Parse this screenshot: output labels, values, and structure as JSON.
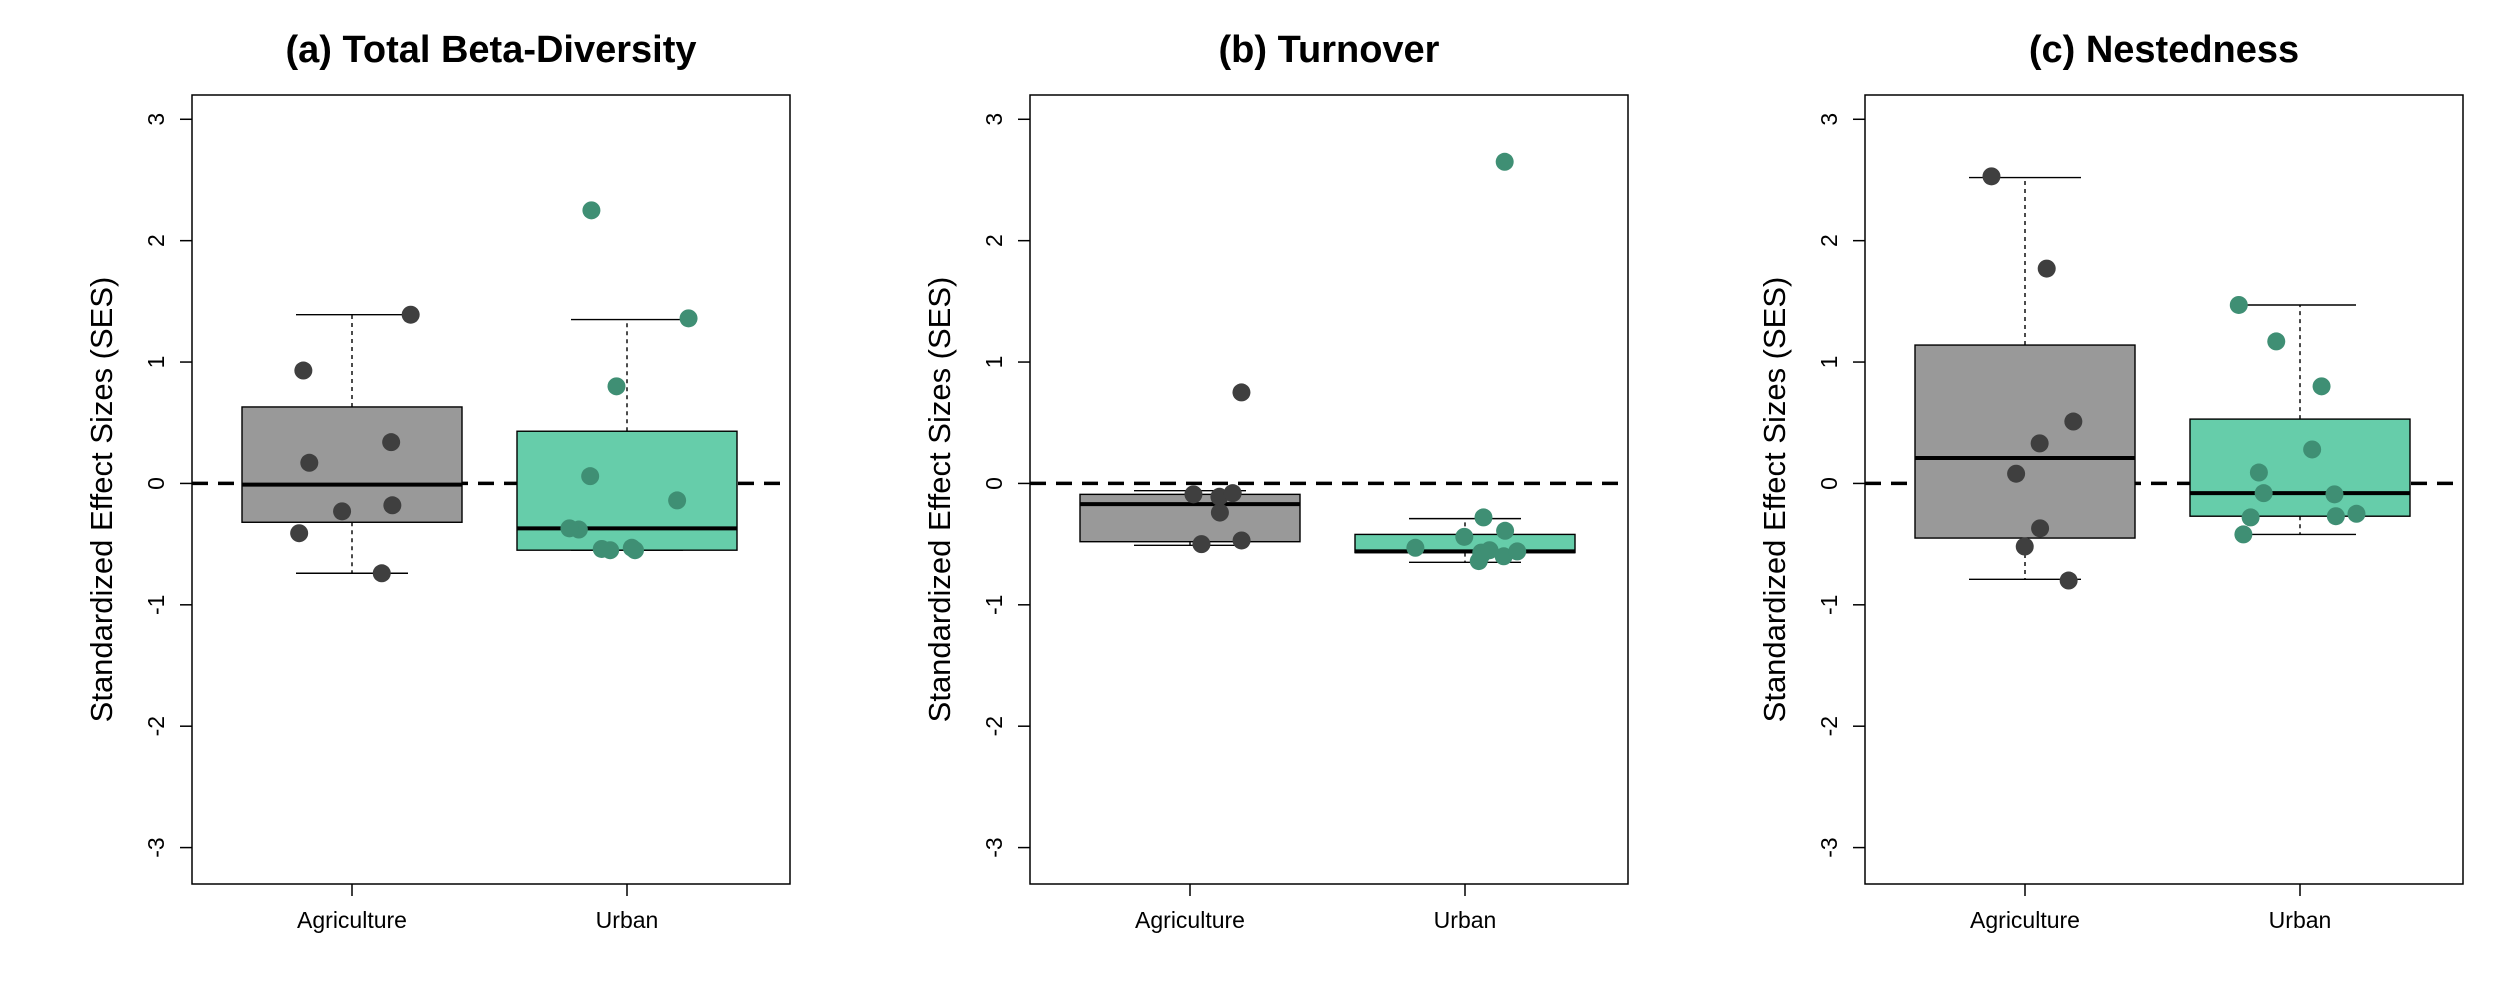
{
  "chart_data": [
    {
      "type": "box",
      "title": "(a) Total Beta-Diversity",
      "ylabel": "Standardized Effect Sizes (SES)",
      "ylim": [
        -3.3,
        3.2
      ],
      "yticks": [
        -3,
        -2,
        -1,
        0,
        1,
        2,
        3
      ],
      "reference_line": 0,
      "categories": [
        "Agriculture",
        "Urban"
      ],
      "groups": [
        {
          "category": "Agriculture",
          "box_color": "#999999",
          "point_color": "#3f3f3f",
          "whisker_low": -0.74,
          "q1": -0.32,
          "median": -0.01,
          "q3": 0.63,
          "whisker_high": 1.39,
          "points": [
            -0.74,
            -0.41,
            -0.23,
            -0.18,
            0.17,
            0.34,
            0.93,
            1.39
          ]
        },
        {
          "category": "Urban",
          "box_color": "#66cdaa",
          "point_color": "#3f8f74",
          "whisker_low": -0.55,
          "q1": -0.55,
          "median": -0.37,
          "q3": 0.43,
          "whisker_high": 1.35,
          "points": [
            -0.55,
            -0.55,
            -0.54,
            -0.53,
            -0.38,
            -0.37,
            -0.14,
            0.06,
            0.8,
            1.36,
            2.25
          ]
        }
      ]
    },
    {
      "type": "box",
      "title": "(b) Turnover",
      "ylabel": "Standardized Effect Sizes (SES)",
      "ylim": [
        -3.3,
        3.2
      ],
      "yticks": [
        -3,
        -2,
        -1,
        0,
        1,
        2,
        3
      ],
      "reference_line": 0,
      "categories": [
        "Agriculture",
        "Urban"
      ],
      "groups": [
        {
          "category": "Agriculture",
          "box_color": "#999999",
          "point_color": "#3f3f3f",
          "whisker_low": -0.51,
          "q1": -0.48,
          "median": -0.17,
          "q3": -0.09,
          "whisker_high": -0.06,
          "points": [
            -0.5,
            -0.47,
            -0.24,
            -0.11,
            -0.09,
            -0.08,
            0.75
          ]
        },
        {
          "category": "Urban",
          "box_color": "#66cdaa",
          "point_color": "#3f8f74",
          "whisker_low": -0.65,
          "q1": -0.57,
          "median": -0.56,
          "q3": -0.42,
          "whisker_high": -0.29,
          "points": [
            -0.64,
            -0.6,
            -0.59,
            -0.57,
            -0.56,
            -0.55,
            -0.53,
            -0.44,
            -0.39,
            -0.28,
            2.65
          ]
        }
      ]
    },
    {
      "type": "box",
      "title": "(c) Nestedness",
      "ylabel": "Standardized Effect Sizes (SES)",
      "ylim": [
        -3.3,
        3.2
      ],
      "yticks": [
        -3,
        -2,
        -1,
        0,
        1,
        2,
        3
      ],
      "reference_line": 0,
      "categories": [
        "Agriculture",
        "Urban"
      ],
      "groups": [
        {
          "category": "Agriculture",
          "box_color": "#999999",
          "point_color": "#3f3f3f",
          "whisker_low": -0.79,
          "q1": -0.45,
          "median": 0.21,
          "q3": 1.14,
          "whisker_high": 2.52,
          "points": [
            -0.8,
            -0.52,
            -0.37,
            0.08,
            0.33,
            0.51,
            1.77,
            2.53
          ]
        },
        {
          "category": "Urban",
          "box_color": "#66cdaa",
          "point_color": "#3f8f74",
          "whisker_low": -0.42,
          "q1": -0.27,
          "median": -0.08,
          "q3": 0.53,
          "whisker_high": 1.47,
          "points": [
            -0.42,
            -0.28,
            -0.27,
            -0.25,
            -0.09,
            -0.08,
            0.09,
            0.28,
            0.8,
            1.17,
            1.47
          ]
        }
      ]
    }
  ]
}
